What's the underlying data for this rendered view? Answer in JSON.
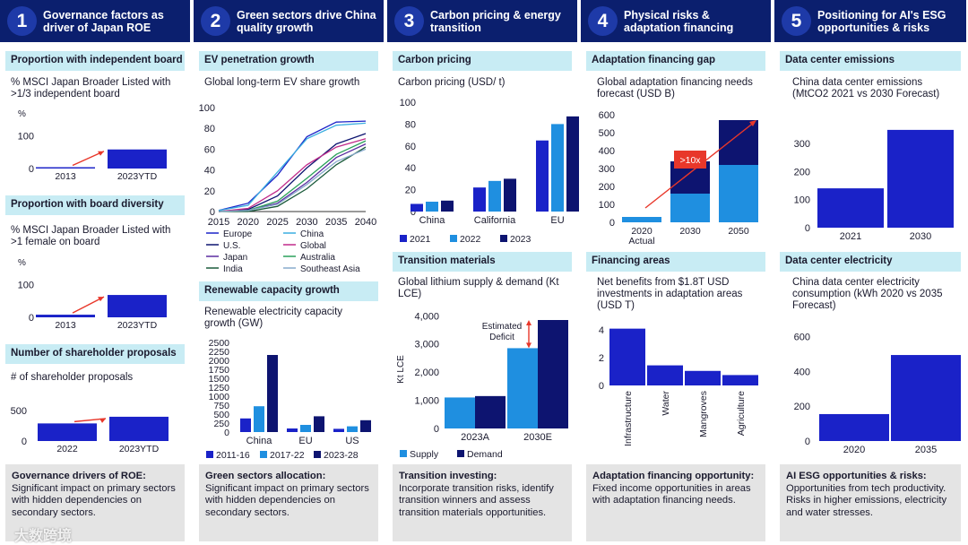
{
  "colors": {
    "navy": "#0b1f6e",
    "blue": "#1a22c8",
    "light_blue": "#1f8fe0",
    "dark": "#0d1470",
    "red": "#e8372a",
    "cyan_bg": "#c8ecf4"
  },
  "columns": [
    {
      "number": "1",
      "title": "Governance factors as driver of Japan ROE",
      "foot_title": "Governance drivers of ROE:",
      "foot_text": "Significant impact on primary sectors with hidden dependencies on secondary sectors."
    },
    {
      "number": "2",
      "title": "Green sectors drive China quality growth",
      "foot_title": "Green sectors allocation:",
      "foot_text": "Significant impact on primary sectors with hidden dependencies on secondary sectors."
    },
    {
      "number": "3",
      "title": "Carbon pricing & energy transition",
      "foot_title": "Transition investing:",
      "foot_text": "Incorporate transition risks, identify transition winners and assess transition materials opportunities."
    },
    {
      "number": "4",
      "title": "Physical risks & adaptation financing",
      "foot_title": "Adaptation financing opportunity:",
      "foot_text": "Fixed income opportunities in areas with adaptation financing needs."
    },
    {
      "number": "5",
      "title": "Positioning for AI's ESG opportunities & risks",
      "foot_title": "AI ESG opportunities & risks:",
      "foot_text": "Opportunities from tech productivity. Risks in higher emissions, electricity and water stresses."
    }
  ],
  "chart_data": [
    {
      "id": "independent_board",
      "type": "bar",
      "title": "Proportion with independent board",
      "subtitle": "% MSCI Japan Broader Listed with >1/3 independent board",
      "ylabel": "%",
      "yticks": [
        0,
        100
      ],
      "ylim": [
        0,
        120
      ],
      "categories": [
        "2013",
        "2023YTD"
      ],
      "values": [
        4,
        58
      ]
    },
    {
      "id": "board_diversity",
      "type": "bar",
      "title": "Proportion with board diversity",
      "subtitle": "% MSCI Japan Broader Listed with >1 female on board",
      "ylabel": "%",
      "yticks": [
        0,
        100
      ],
      "ylim": [
        0,
        120
      ],
      "categories": [
        "2013",
        "2023YTD"
      ],
      "values": [
        8,
        68
      ]
    },
    {
      "id": "shareholder_proposals",
      "type": "bar",
      "title": "Number of shareholder proposals",
      "subtitle": "# of shareholder proposals",
      "yticks": [
        0,
        500
      ],
      "ylim": [
        0,
        650
      ],
      "categories": [
        "2022",
        "2023YTD"
      ],
      "values": [
        290,
        400
      ]
    },
    {
      "id": "ev_penetration",
      "type": "line",
      "title": "EV penetration growth",
      "subtitle": "Global long-term EV share growth",
      "x": [
        2015,
        2020,
        2025,
        2030,
        2035,
        2040
      ],
      "ylim": [
        0,
        100
      ],
      "yticks": [
        0,
        20,
        40,
        60,
        80,
        100
      ],
      "series": [
        {
          "name": "Europe",
          "color": "#1a22c8",
          "values": [
            1,
            8,
            35,
            72,
            86,
            87
          ]
        },
        {
          "name": "China",
          "color": "#3aaee0",
          "values": [
            1,
            6,
            38,
            70,
            83,
            85
          ]
        },
        {
          "name": "U.S.",
          "color": "#0d1470",
          "values": [
            0,
            2,
            15,
            42,
            65,
            75
          ]
        },
        {
          "name": "Global",
          "color": "#c02a8a",
          "values": [
            0,
            3,
            20,
            45,
            62,
            70
          ]
        },
        {
          "name": "Japan",
          "color": "#5a2ca0",
          "values": [
            0,
            1,
            8,
            28,
            52,
            65
          ]
        },
        {
          "name": "Australia",
          "color": "#2aa05a",
          "values": [
            0,
            1,
            10,
            32,
            55,
            68
          ]
        },
        {
          "name": "India",
          "color": "#1a5a3a",
          "values": [
            0,
            0,
            5,
            22,
            45,
            62
          ]
        },
        {
          "name": "Southeast Asia",
          "color": "#88aacc",
          "values": [
            0,
            1,
            7,
            26,
            48,
            60
          ]
        }
      ]
    },
    {
      "id": "renewable_capacity",
      "type": "bar",
      "title": "Renewable capacity growth",
      "subtitle": "Renewable electricity capacity growth (GW)",
      "ylim": [
        0,
        2500
      ],
      "yticks": [
        0,
        250,
        500,
        750,
        1000,
        1250,
        1500,
        1750,
        2000,
        2250,
        2500
      ],
      "categories": [
        "China",
        "EU",
        "US"
      ],
      "series": [
        {
          "name": "2011-16",
          "color": "#1a22c8",
          "values": [
            380,
            100,
            90
          ]
        },
        {
          "name": "2017-22",
          "color": "#1f8fe0",
          "values": [
            720,
            200,
            160
          ]
        },
        {
          "name": "2023-28",
          "color": "#0d1470",
          "values": [
            2150,
            440,
            330
          ]
        }
      ]
    },
    {
      "id": "carbon_pricing",
      "type": "bar",
      "title": "Carbon pricing",
      "subtitle": "Carbon pricing (USD/ t)",
      "ylim": [
        0,
        100
      ],
      "yticks": [
        0,
        20,
        40,
        60,
        80,
        100
      ],
      "categories": [
        "China",
        "California",
        "EU"
      ],
      "series": [
        {
          "name": "2021",
          "color": "#1a22c8",
          "values": [
            7,
            22,
            65
          ]
        },
        {
          "name": "2022",
          "color": "#1f8fe0",
          "values": [
            9,
            28,
            80
          ]
        },
        {
          "name": "2023",
          "color": "#0d1470",
          "values": [
            10,
            30,
            87
          ]
        }
      ]
    },
    {
      "id": "transition_materials",
      "type": "bar",
      "title": "Transition materials",
      "subtitle": "Global lithium supply & demand (Kt LCE)",
      "ylabel": "Kt LCE",
      "ylim": [
        0,
        4200
      ],
      "yticks": [
        0,
        1000,
        2000,
        3000,
        4000
      ],
      "ytick_labels": [
        "0",
        "1,000",
        "2,000",
        "3,000",
        "4,000"
      ],
      "categories": [
        "2023A",
        "2030E"
      ],
      "series": [
        {
          "name": "Supply",
          "color": "#1f8fe0",
          "values": [
            1100,
            2850
          ]
        },
        {
          "name": "Demand",
          "color": "#0d1470",
          "values": [
            1150,
            3850
          ]
        }
      ],
      "annotation": "Estimated Deficit"
    },
    {
      "id": "adaptation_gap",
      "type": "bar",
      "title": "Adaptation financing gap",
      "subtitle": "Global adaptation financing needs forecast (USD B)",
      "ylim": [
        0,
        620
      ],
      "yticks": [
        0,
        100,
        200,
        300,
        400,
        500,
        600
      ],
      "categories": [
        "2020 Actual",
        "2030",
        "2050"
      ],
      "series": [
        {
          "name": "lower",
          "color": "#1f8fe0",
          "values": [
            30,
            160,
            320
          ]
        },
        {
          "name": "upper",
          "color": "#0d1470",
          "values": [
            0,
            180,
            250
          ]
        }
      ],
      "annotation": ">10x"
    },
    {
      "id": "financing_areas",
      "type": "bar",
      "title": "Financing areas",
      "subtitle": "Net benefits from $1.8T USD investments in adaptation areas (USD T)",
      "ylim": [
        0,
        4.4
      ],
      "yticks": [
        0,
        2,
        4
      ],
      "categories": [
        "Infrastructure",
        "Water",
        "Mangroves",
        "Agriculture"
      ],
      "values": [
        4.1,
        1.45,
        1.05,
        0.75
      ]
    },
    {
      "id": "dc_emissions",
      "type": "bar",
      "title": "Data center emissions",
      "subtitle": "China data center emissions (MtCO2 2021 vs 2030 Forecast)",
      "ylim": [
        0,
        370
      ],
      "yticks": [
        0,
        100,
        200,
        300
      ],
      "categories": [
        "2021",
        "2030"
      ],
      "values": [
        140,
        348
      ]
    },
    {
      "id": "dc_electricity",
      "type": "bar",
      "title": "Data center electricity",
      "subtitle": "China data center electricity consumption (kWh 2020 vs 2035 Forecast)",
      "ylim": [
        0,
        650
      ],
      "yticks": [
        0,
        200,
        400,
        600
      ],
      "categories": [
        "2020",
        "2035"
      ],
      "values": [
        155,
        495
      ]
    }
  ],
  "watermark": "大数跨境"
}
